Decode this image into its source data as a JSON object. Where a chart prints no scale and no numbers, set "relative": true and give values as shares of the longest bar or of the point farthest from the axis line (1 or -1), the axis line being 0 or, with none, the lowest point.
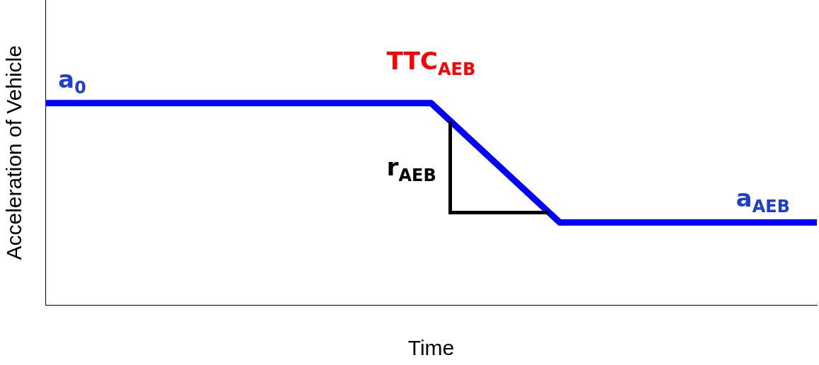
{
  "chart_data": {
    "type": "line",
    "relative": true,
    "xlabel": "Time",
    "ylabel": "Acceleration of Vehicle",
    "categories": [
      null,
      null,
      null,
      null,
      null,
      null,
      null
    ],
    "series": [
      {
        "color": "#0000ff",
        "values": [
          1,
          1,
          1,
          1,
          0.41,
          0.41,
          0.41
        ]
      }
    ],
    "annotations": [
      "a$_{0}$",
      "TTC$_{AEB}$",
      "r$_{AEB}$",
      "a$_{AEB}$"
    ],
    "marker": "none",
    "grid": false,
    "legend": false
  }
}
